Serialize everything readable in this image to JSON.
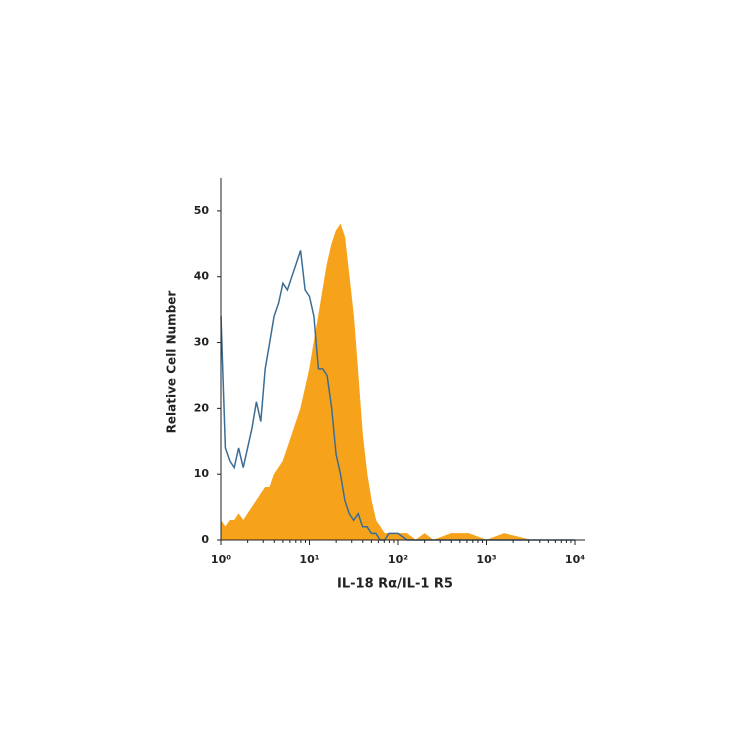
{
  "chart_data": {
    "type": "histogram-overlay",
    "xlabel": "IL-18 Rα/IL-1 R5",
    "ylabel": "Relative Cell Number",
    "log_x": true,
    "xlim": [
      1,
      10000
    ],
    "xticks": [
      {
        "value": 1,
        "label": "10⁰"
      },
      {
        "value": 10,
        "label": "10¹"
      },
      {
        "value": 100,
        "label": "10²"
      },
      {
        "value": 1000,
        "label": "10³"
      },
      {
        "value": 10000,
        "label": "10⁴"
      }
    ],
    "ylim": [
      0,
      55
    ],
    "yticks": [
      0,
      10,
      20,
      30,
      40,
      50
    ],
    "x": [
      1,
      1.12,
      1.26,
      1.41,
      1.58,
      1.78,
      2.0,
      2.24,
      2.51,
      2.82,
      3.16,
      3.55,
      3.98,
      4.47,
      5.01,
      5.62,
      6.31,
      7.08,
      7.94,
      8.91,
      10,
      11.2,
      12.6,
      14.1,
      15.8,
      17.8,
      20.0,
      22.4,
      25.1,
      28.2,
      31.6,
      35.5,
      39.8,
      44.7,
      50.1,
      56.2,
      63.1,
      70.8,
      79.4,
      89.1,
      100,
      126,
      158,
      200,
      251,
      398,
      631,
      1000,
      1580,
      3160,
      10000
    ],
    "series": [
      {
        "color": "#f7a21b",
        "fill": true,
        "values": [
          3,
          2,
          3,
          3,
          4,
          3,
          4,
          5,
          6,
          7,
          8,
          8,
          10,
          11,
          12,
          14,
          16,
          18,
          20,
          23,
          26,
          30,
          34,
          38,
          42,
          45,
          47,
          48,
          46,
          40,
          34,
          25,
          16,
          10,
          6,
          3,
          2,
          1,
          1,
          1,
          1,
          1,
          0,
          1,
          0,
          1,
          1,
          0,
          1,
          0,
          0
        ]
      },
      {
        "color": "#3a6d96",
        "fill": false,
        "values": [
          34,
          14,
          12,
          11,
          14,
          11,
          14,
          17,
          21,
          18,
          26,
          30,
          34,
          36,
          39,
          38,
          40,
          42,
          44,
          38,
          37,
          34,
          26,
          26,
          25,
          20,
          13,
          10,
          6,
          4,
          3,
          4,
          2,
          2,
          1,
          1,
          0,
          0,
          1,
          1,
          1,
          0,
          0,
          0,
          0,
          0,
          0,
          0,
          0,
          0,
          0
        ]
      }
    ]
  }
}
